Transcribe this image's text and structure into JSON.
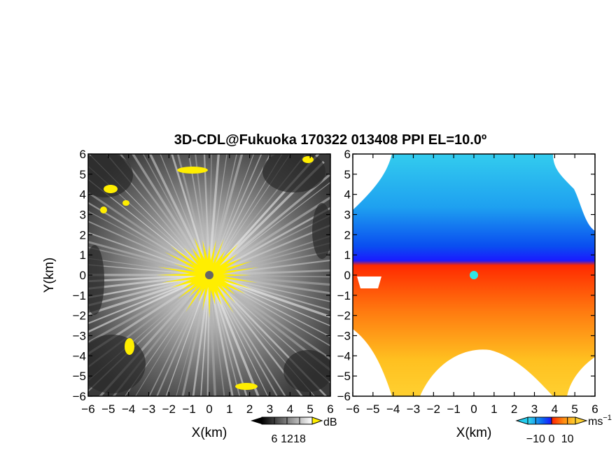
{
  "chart_data": {
    "type": "heatmap",
    "title": "3D-CDL@Fukuoka 170322 013408 PPI EL=10.0º",
    "panels": [
      {
        "name": "reflectivity",
        "xlabel": "X(km)",
        "ylabel": "Y(km)",
        "xlim": [
          -6,
          6
        ],
        "ylim": [
          -6,
          6
        ],
        "x_ticks": [
          "−6",
          "−5",
          "−4",
          "−3",
          "−2",
          "−1",
          "0",
          "1",
          "2",
          "3",
          "4",
          "5",
          "6"
        ],
        "y_ticks": [
          "6",
          "5",
          "4",
          "3",
          "2",
          "1",
          "0",
          "−1",
          "−2",
          "−3",
          "−4",
          "−5",
          "−6"
        ],
        "colorscale": "grayscale",
        "saturation_color": "#ffee00",
        "center_marker_color": "#666666",
        "colorbar": {
          "unit": "dB",
          "tick_labels": [
            "6",
            "12",
            "18"
          ],
          "tick_values": [
            6,
            12,
            18
          ],
          "range": [
            0,
            24
          ]
        }
      },
      {
        "name": "doppler-velocity",
        "xlabel": "X(km)",
        "xlim": [
          -6,
          6
        ],
        "ylim": [
          -6,
          6
        ],
        "x_ticks": [
          "−6",
          "−5",
          "−4",
          "−3",
          "−2",
          "−1",
          "0",
          "1",
          "2",
          "3",
          "4",
          "5",
          "6"
        ],
        "y_ticks": [
          "6",
          "5",
          "4",
          "3",
          "2",
          "1",
          "0",
          "−1",
          "−2",
          "−3",
          "−4",
          "−5",
          "−6"
        ],
        "colorscale": "blue-to-orange",
        "center_marker_color": "#2ee6e6",
        "colorbar": {
          "unit": "ms",
          "unit_exponent": "−1",
          "tick_labels": [
            "−10",
            "0",
            "10"
          ],
          "tick_values": [
            -10,
            0,
            10
          ],
          "range": [
            -15,
            15
          ],
          "colors": [
            "#22ccee",
            "#0055ee",
            "#1a1aff",
            "#ff2a00",
            "#ff6a00",
            "#ffd000"
          ]
        }
      }
    ]
  }
}
